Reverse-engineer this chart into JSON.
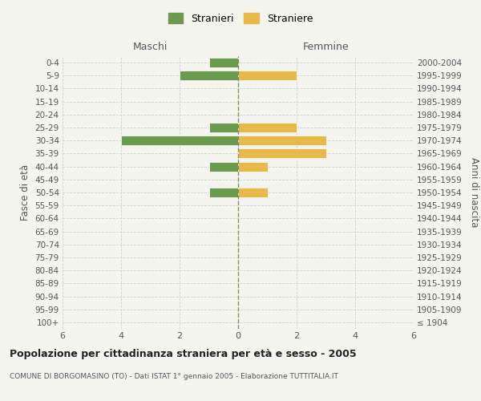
{
  "age_groups": [
    "100+",
    "95-99",
    "90-94",
    "85-89",
    "80-84",
    "75-79",
    "70-74",
    "65-69",
    "60-64",
    "55-59",
    "50-54",
    "45-49",
    "40-44",
    "35-39",
    "30-34",
    "25-29",
    "20-24",
    "15-19",
    "10-14",
    "5-9",
    "0-4"
  ],
  "birth_years": [
    "≤ 1904",
    "1905-1909",
    "1910-1914",
    "1915-1919",
    "1920-1924",
    "1925-1929",
    "1930-1934",
    "1935-1939",
    "1940-1944",
    "1945-1949",
    "1950-1954",
    "1955-1959",
    "1960-1964",
    "1965-1969",
    "1970-1974",
    "1975-1979",
    "1980-1984",
    "1985-1989",
    "1990-1994",
    "1995-1999",
    "2000-2004"
  ],
  "maschi": [
    0,
    0,
    0,
    0,
    0,
    0,
    0,
    0,
    0,
    0,
    1,
    0,
    1,
    0,
    4,
    1,
    0,
    0,
    0,
    2,
    1
  ],
  "femmine": [
    0,
    0,
    0,
    0,
    0,
    0,
    0,
    0,
    0,
    0,
    1,
    0,
    1,
    3,
    3,
    2,
    0,
    0,
    0,
    2,
    0
  ],
  "color_maschi": "#6a9a4e",
  "color_femmine": "#e8b84b",
  "xlabel_left": "Maschi",
  "xlabel_right": "Femmine",
  "ylabel_left": "Fasce di età",
  "ylabel_right": "Anni di nascita",
  "xlim": 6,
  "title": "Popolazione per cittadinanza straniera per età e sesso - 2005",
  "subtitle": "COMUNE DI BORGOMASINO (TO) - Dati ISTAT 1° gennaio 2005 - Elaborazione TUTTITALIA.IT",
  "legend_maschi": "Stranieri",
  "legend_femmine": "Straniere",
  "bg_color": "#f5f5f0",
  "grid_color": "#cccccc",
  "bar_edge_color": "white"
}
